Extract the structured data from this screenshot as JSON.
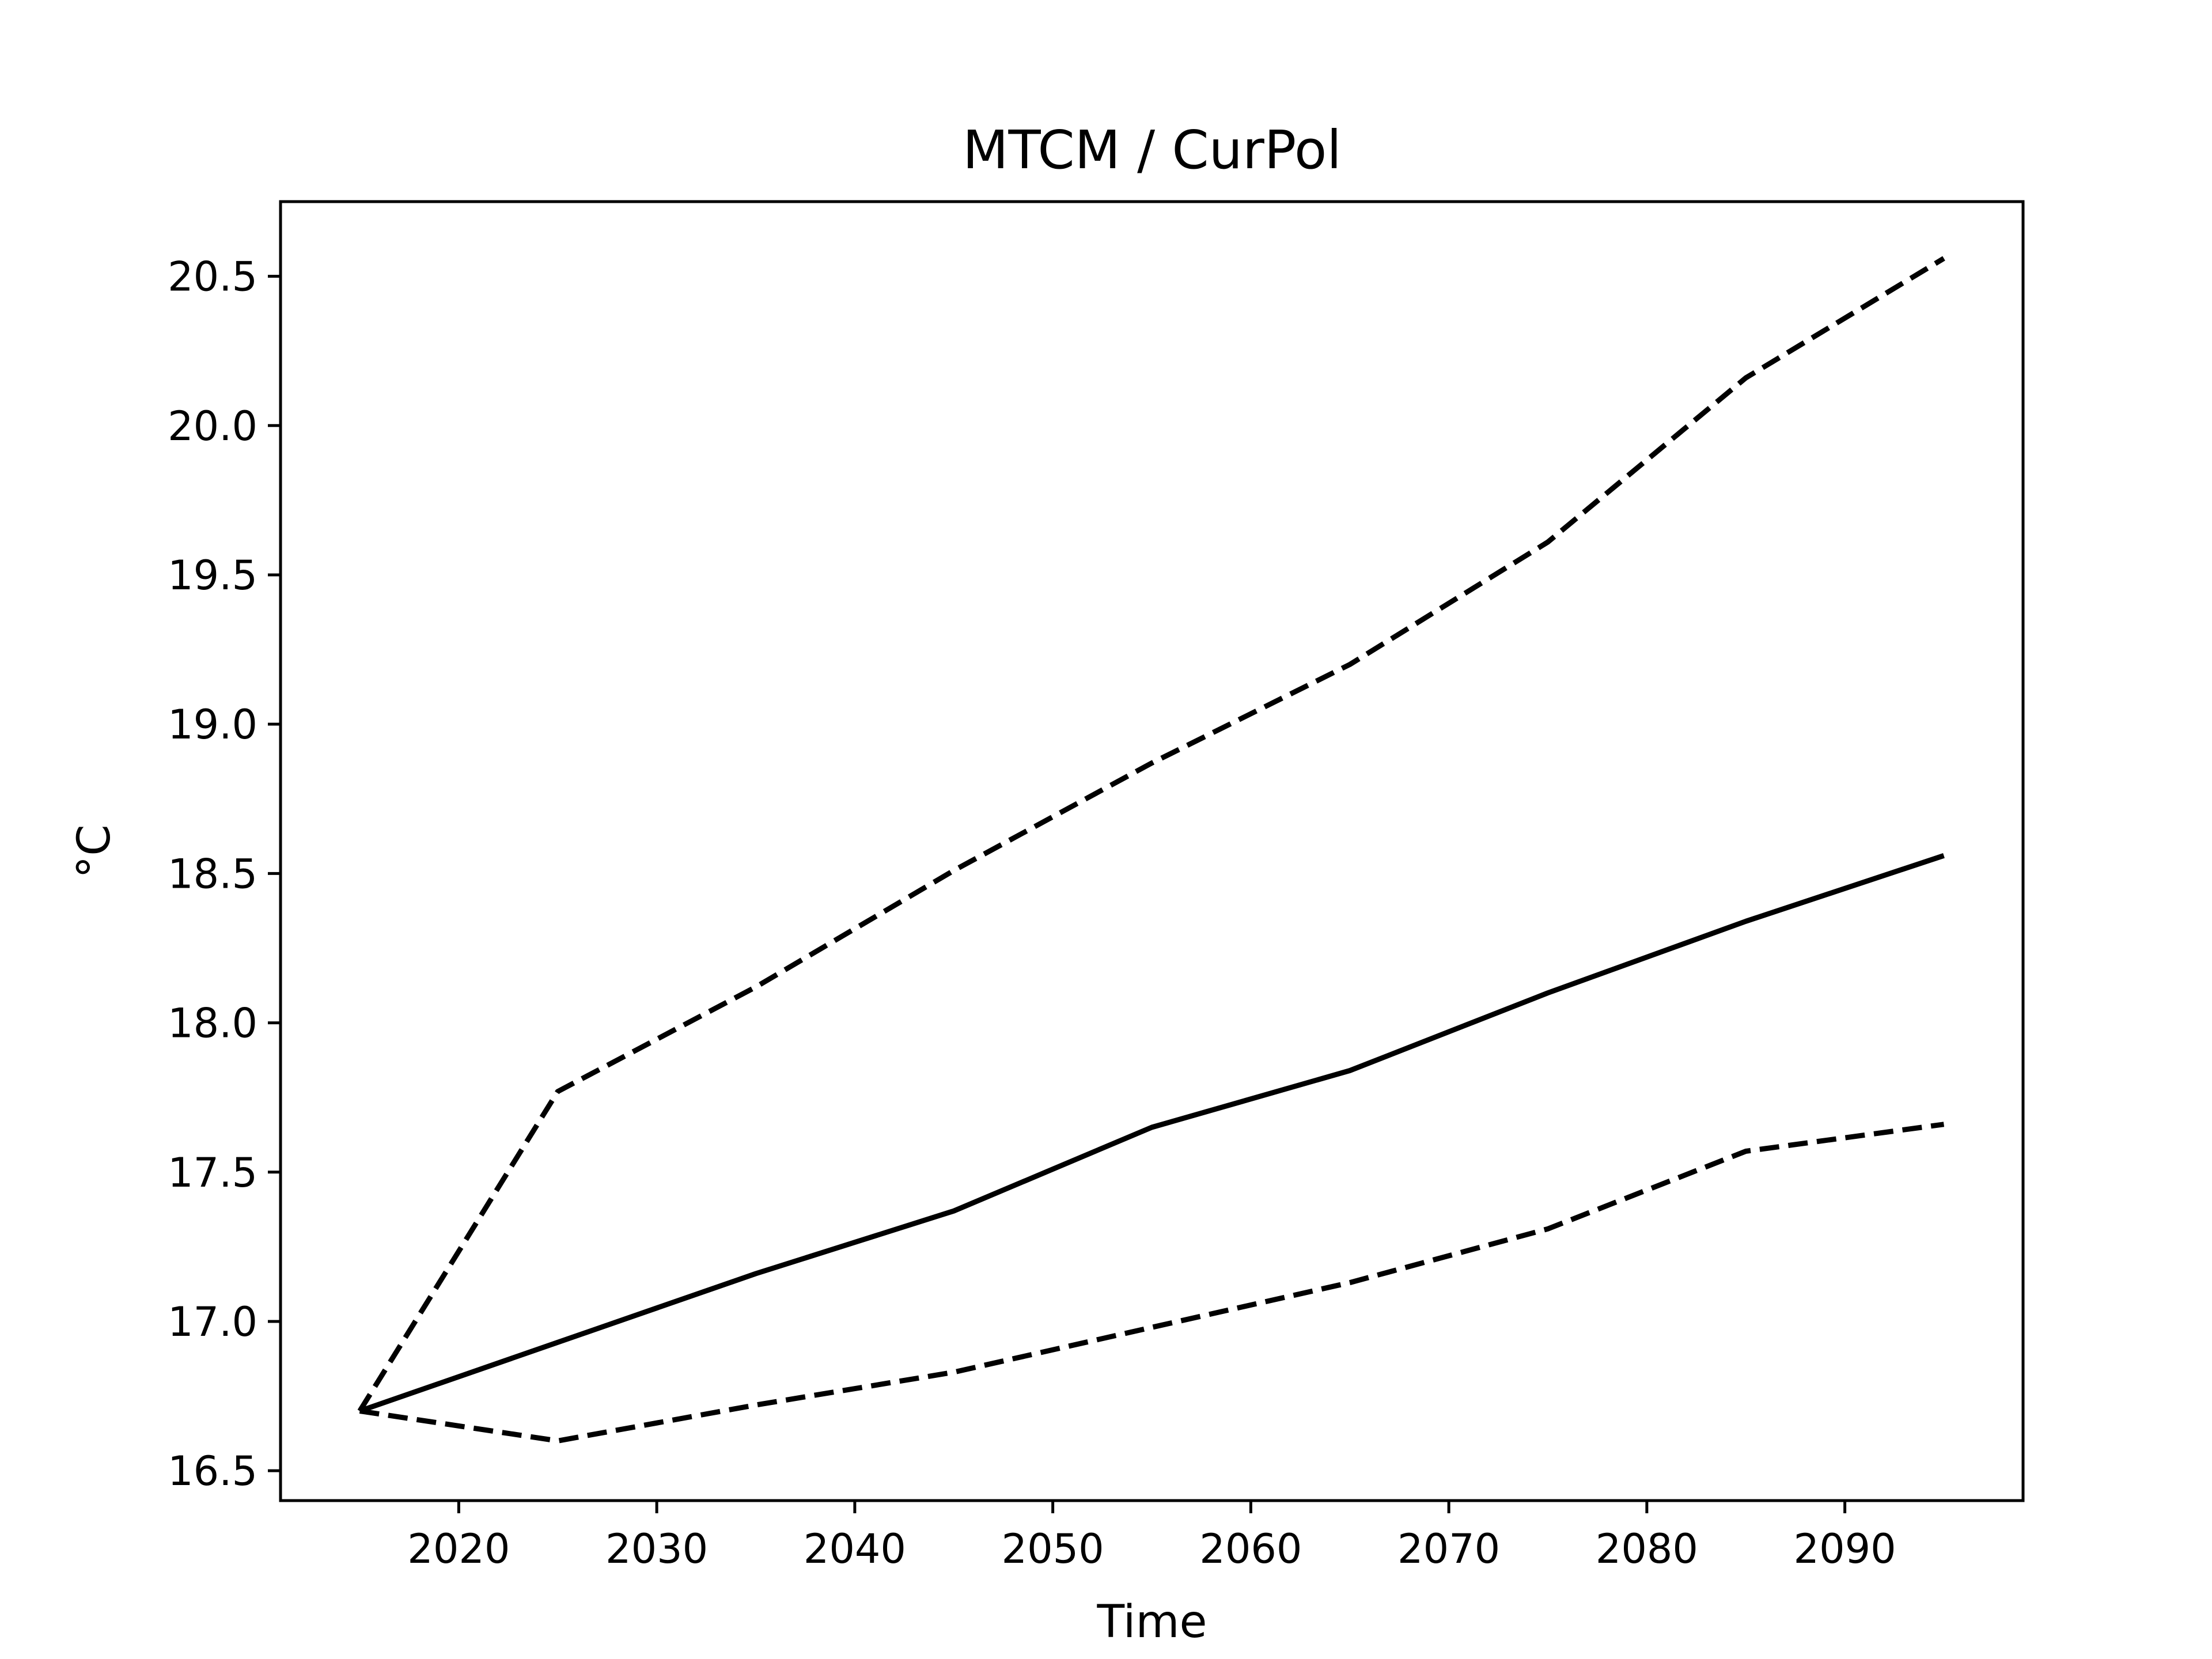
{
  "chart_data": {
    "type": "line",
    "title": "MTCM / CurPol",
    "xlabel": "Time",
    "ylabel": "°C",
    "xlim": [
      2011,
      2099
    ],
    "ylim": [
      16.4,
      20.75
    ],
    "xticks": [
      2020,
      2030,
      2040,
      2050,
      2060,
      2070,
      2080,
      2090
    ],
    "yticks": [
      16.5,
      17.0,
      17.5,
      18.0,
      18.5,
      19.0,
      19.5,
      20.0,
      20.5
    ],
    "grid": false,
    "legend": "none",
    "x": [
      2015,
      2025,
      2035,
      2045,
      2055,
      2065,
      2075,
      2085,
      2095
    ],
    "series": [
      {
        "style": "solid",
        "color": "#000000",
        "values": [
          16.7,
          16.93,
          17.16,
          17.37,
          17.65,
          17.84,
          18.1,
          18.34,
          18.56
        ]
      },
      {
        "style": "dashed",
        "color": "#000000",
        "values": [
          16.7,
          17.77,
          18.12,
          18.51,
          18.87,
          19.2,
          19.61,
          20.16,
          20.56
        ]
      },
      {
        "style": "dashed",
        "color": "#000000",
        "values": [
          16.7,
          16.6,
          16.72,
          16.83,
          16.98,
          17.13,
          17.31,
          17.57,
          17.66
        ]
      }
    ]
  }
}
